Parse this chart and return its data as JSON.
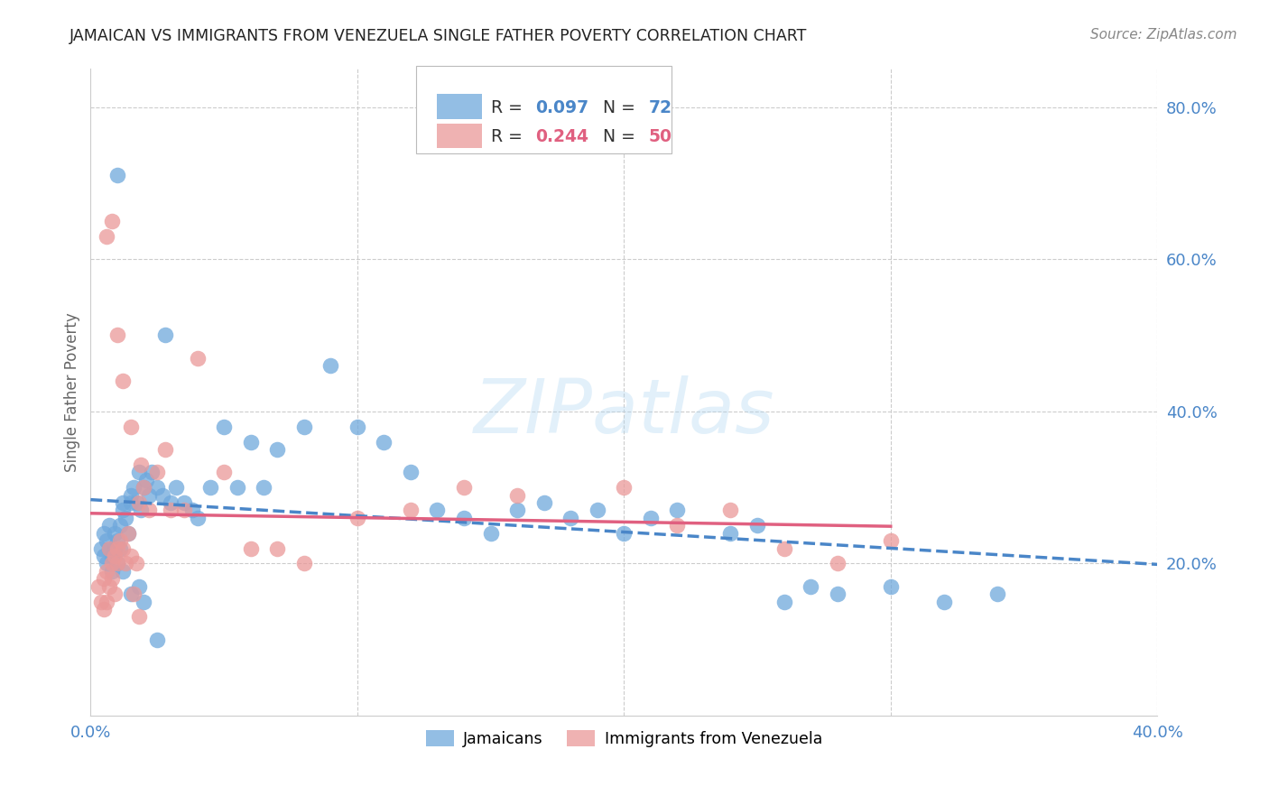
{
  "title": "JAMAICAN VS IMMIGRANTS FROM VENEZUELA SINGLE FATHER POVERTY CORRELATION CHART",
  "source": "Source: ZipAtlas.com",
  "ylabel": "Single Father Poverty",
  "right_yticks": [
    0.2,
    0.4,
    0.6,
    0.8
  ],
  "right_yticklabels": [
    "20.0%",
    "40.0%",
    "60.0%",
    "80.0%"
  ],
  "xlim": [
    0.0,
    0.4
  ],
  "ylim": [
    0.0,
    0.85
  ],
  "jamaicans_color": "#6fa8dc",
  "venezuela_color": "#ea9999",
  "trend_jamaicans_color": "#4a86c8",
  "trend_venezuela_color": "#e06080",
  "background_color": "#ffffff",
  "jamaicans_x": [
    0.004,
    0.005,
    0.005,
    0.006,
    0.006,
    0.007,
    0.007,
    0.008,
    0.008,
    0.009,
    0.009,
    0.01,
    0.01,
    0.011,
    0.011,
    0.012,
    0.012,
    0.013,
    0.014,
    0.015,
    0.015,
    0.016,
    0.017,
    0.018,
    0.019,
    0.02,
    0.021,
    0.022,
    0.023,
    0.025,
    0.027,
    0.028,
    0.03,
    0.032,
    0.035,
    0.038,
    0.04,
    0.045,
    0.05,
    0.055,
    0.06,
    0.065,
    0.07,
    0.08,
    0.09,
    0.1,
    0.11,
    0.12,
    0.13,
    0.14,
    0.15,
    0.16,
    0.17,
    0.18,
    0.19,
    0.2,
    0.21,
    0.22,
    0.24,
    0.25,
    0.26,
    0.27,
    0.28,
    0.3,
    0.32,
    0.34,
    0.01,
    0.012,
    0.015,
    0.018,
    0.02,
    0.025
  ],
  "jamaicans_y": [
    0.22,
    0.21,
    0.24,
    0.2,
    0.23,
    0.22,
    0.25,
    0.21,
    0.19,
    0.24,
    0.22,
    0.23,
    0.2,
    0.25,
    0.22,
    0.28,
    0.27,
    0.26,
    0.24,
    0.29,
    0.28,
    0.3,
    0.28,
    0.32,
    0.27,
    0.3,
    0.31,
    0.29,
    0.32,
    0.3,
    0.29,
    0.5,
    0.28,
    0.3,
    0.28,
    0.27,
    0.26,
    0.3,
    0.38,
    0.3,
    0.36,
    0.3,
    0.35,
    0.38,
    0.46,
    0.38,
    0.36,
    0.32,
    0.27,
    0.26,
    0.24,
    0.27,
    0.28,
    0.26,
    0.27,
    0.24,
    0.26,
    0.27,
    0.24,
    0.25,
    0.15,
    0.17,
    0.16,
    0.17,
    0.15,
    0.16,
    0.71,
    0.19,
    0.16,
    0.17,
    0.15,
    0.1
  ],
  "venezuela_x": [
    0.003,
    0.004,
    0.005,
    0.005,
    0.006,
    0.006,
    0.007,
    0.007,
    0.008,
    0.008,
    0.009,
    0.009,
    0.01,
    0.01,
    0.011,
    0.012,
    0.013,
    0.014,
    0.015,
    0.016,
    0.017,
    0.018,
    0.019,
    0.02,
    0.022,
    0.025,
    0.028,
    0.03,
    0.035,
    0.04,
    0.05,
    0.06,
    0.07,
    0.08,
    0.1,
    0.12,
    0.14,
    0.16,
    0.2,
    0.22,
    0.24,
    0.26,
    0.28,
    0.3,
    0.006,
    0.008,
    0.01,
    0.012,
    0.015,
    0.018
  ],
  "venezuela_y": [
    0.17,
    0.15,
    0.14,
    0.18,
    0.15,
    0.19,
    0.17,
    0.22,
    0.18,
    0.2,
    0.21,
    0.16,
    0.2,
    0.22,
    0.23,
    0.22,
    0.2,
    0.24,
    0.21,
    0.16,
    0.2,
    0.28,
    0.33,
    0.3,
    0.27,
    0.32,
    0.35,
    0.27,
    0.27,
    0.47,
    0.32,
    0.22,
    0.22,
    0.2,
    0.26,
    0.27,
    0.3,
    0.29,
    0.3,
    0.25,
    0.27,
    0.22,
    0.2,
    0.23,
    0.63,
    0.65,
    0.5,
    0.44,
    0.38,
    0.13
  ]
}
